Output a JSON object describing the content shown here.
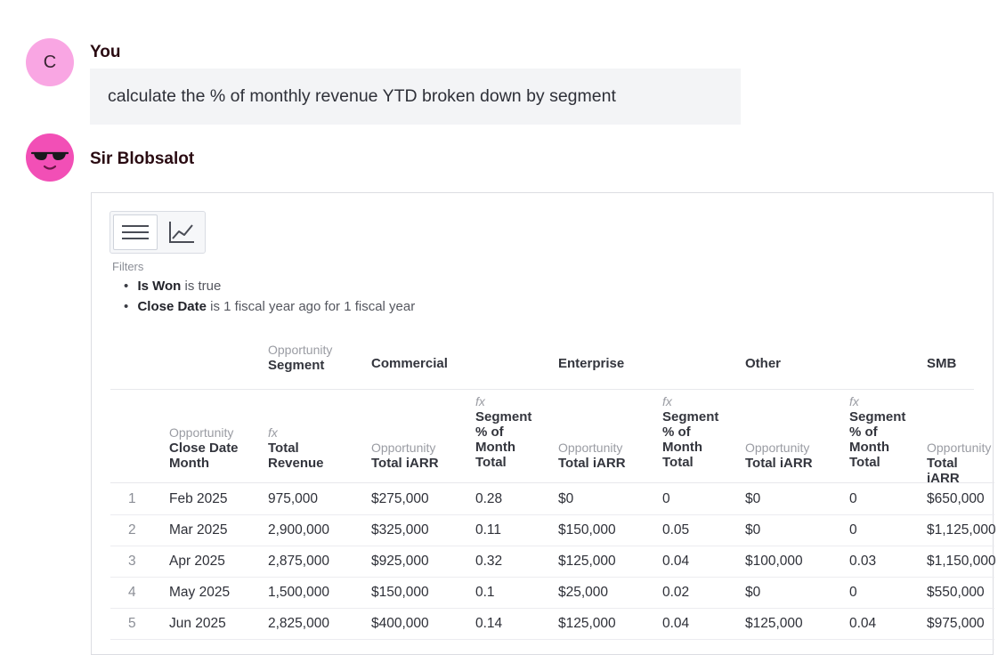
{
  "chat": {
    "user": {
      "initial": "C",
      "name": "You",
      "message": "calculate the % of monthly revenue YTD broken down by segment"
    },
    "bot": {
      "name": "Sir Blobsalot"
    }
  },
  "icons": {
    "table_view": "list-icon",
    "chart_view": "line-chart-icon",
    "bot_avatar": "sunglasses-face-icon"
  },
  "colors": {
    "user_avatar": "#f9a6e3",
    "bot_avatar": "#f24fb6"
  },
  "filters": {
    "label": "Filters",
    "items": [
      {
        "field": "Is Won",
        "condition": "is true"
      },
      {
        "field": "Close Date",
        "condition": "is 1 fiscal year ago for 1 fiscal year"
      }
    ]
  },
  "table": {
    "pivot_header": {
      "sub": "Opportunity",
      "main": "Segment"
    },
    "segments": [
      "Commercial",
      "Enterprise",
      "Other",
      "SMB"
    ],
    "columns": [
      {
        "sub": "Opportunity",
        "main": "Close Date Month"
      },
      {
        "sub": "fx",
        "main": "Total Revenue"
      },
      {
        "sub": "Opportunity",
        "main": "Total iARR"
      },
      {
        "sub": "fx",
        "main": "Segment % of Month Total"
      },
      {
        "sub": "Opportunity",
        "main": "Total iARR"
      },
      {
        "sub": "fx",
        "main": "Segment % of Month Total"
      },
      {
        "sub": "Opportunity",
        "main": "Total iARR"
      },
      {
        "sub": "fx",
        "main": "Segment % of Month Total"
      },
      {
        "sub": "Opportunity",
        "main": "Total iARR"
      }
    ],
    "rows": [
      [
        "1",
        "Feb 2025",
        "975,000",
        "$275,000",
        "0.28",
        "$0",
        "0",
        "$0",
        "0",
        "$650,000"
      ],
      [
        "2",
        "Mar 2025",
        "2,900,000",
        "$325,000",
        "0.11",
        "$150,000",
        "0.05",
        "$0",
        "0",
        "$1,125,000"
      ],
      [
        "3",
        "Apr 2025",
        "2,875,000",
        "$925,000",
        "0.32",
        "$125,000",
        "0.04",
        "$100,000",
        "0.03",
        "$1,150,000"
      ],
      [
        "4",
        "May 2025",
        "1,500,000",
        "$150,000",
        "0.1",
        "$25,000",
        "0.02",
        "$0",
        "0",
        "$550,000"
      ],
      [
        "5",
        "Jun 2025",
        "2,825,000",
        "$400,000",
        "0.14",
        "$125,000",
        "0.04",
        "$125,000",
        "0.04",
        "$975,000"
      ]
    ]
  }
}
